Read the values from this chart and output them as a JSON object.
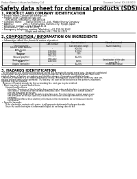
{
  "bg_color": "#ffffff",
  "header_left": "Product Name: Lithium Ion Battery Cell",
  "header_right": "Document Control: SDS-LIB-00010\nEstablishment / Revision: Dec.7.2010",
  "title": "Safety data sheet for chemical products (SDS)",
  "section1_title": "1. PRODUCT AND COMPANY IDENTIFICATION",
  "section1_lines": [
    "• Product name: Lithium Ion Battery Cell",
    "• Product code: Cylindrical-type cell",
    "     INR18650J, INR18650L, INR18650A",
    "• Company name:      Sanyo Electric Co., Ltd., Mobile Energy Company",
    "• Address:              200-1  Kamimurata, Sumoto-City, Hyogo, Japan",
    "• Telephone number:  +81-799-24-4111",
    "• Fax number:  +81-799-26-4129",
    "• Emergency telephone number (Weekday) +81-799-26-3962",
    "                                  (Night and holiday) +81-799-26-4129"
  ],
  "section2_title": "2. COMPOSITION / INFORMATION ON INGREDIENTS",
  "section2_line1": "• Substance or preparation: Preparation",
  "section2_line2": "• Information about the chemical nature of product:",
  "table_col_headers": [
    "Common name /\nChemical name",
    "CAS number",
    "Concentration /\nConcentration range",
    "Classification and\nhazard labeling"
  ],
  "table_rows": [
    [
      "Lithium cobalt tantalite\n(LiMn-Co-O₂)",
      "-",
      "(30-60%)",
      "-"
    ],
    [
      "Iron",
      "7439-89-6",
      "(5-25%)",
      "-"
    ],
    [
      "Aluminum",
      "7429-90-5",
      "2-6%",
      "-"
    ],
    [
      "Graphite\n(Natural graphite)\n(Artificial graphite)",
      "7782-42-5\n7782-44-0",
      "10-25%",
      "-"
    ],
    [
      "Copper",
      "7440-50-8",
      "5-15%",
      "Sensitization of the skin\ngroup No.2"
    ],
    [
      "Organic electrolyte",
      "-",
      "10-20%",
      "Inflammable liquid"
    ]
  ],
  "section3_title": "3. HAZARDS IDENTIFICATION",
  "section3_lines": [
    "  For this battery cell, chemical materials are stored in a hermetically sealed metal case, designed to withstand",
    "temperatures and pressures encountered during normal use. As a result, during normal use, there is no",
    "physical danger of ignition or explosion and therefore danger of hazardous materials leakage.",
    "  However, if exposed to a fire added mechanical shocks, decomposed, vented electric amine my case use,",
    "the gas release vent(can be operated). The battery cell case will be breached at fire-portions, hazardous",
    "materials may be released.",
    "  Moreover, if heated strongly by the surrounding fire, vent gas may be emitted."
  ],
  "section3_bullet1": "• Most important hazard and effects:",
  "section3_human": "      Human health effects:",
  "section3_human_lines": [
    "           Inhalation: The release of the electrolyte has an anesthesia action and stimulates in respiratory tract.",
    "           Skin contact: The release of the electrolyte stimulates a skin. The electrolyte skin contact causes a",
    "           sore and stimulation on the skin.",
    "           Eye contact: The release of the electrolyte stimulates eyes. The electrolyte eye contact causes a sore",
    "           and stimulation on the eye. Especially, a substance that causes a strong inflammation of the eye is",
    "           contained.",
    "           Environmental effects: Since a battery cell remains in the environment, do not throw out it into the",
    "           environment."
  ],
  "section3_bullet2": "• Specific hazards:",
  "section3_specific_lines": [
    "      If the electrolyte contacts with water, it will generate detrimental hydrogen fluoride.",
    "      Since the used electrolyte is inflammable liquid, do not bring close to fire."
  ]
}
